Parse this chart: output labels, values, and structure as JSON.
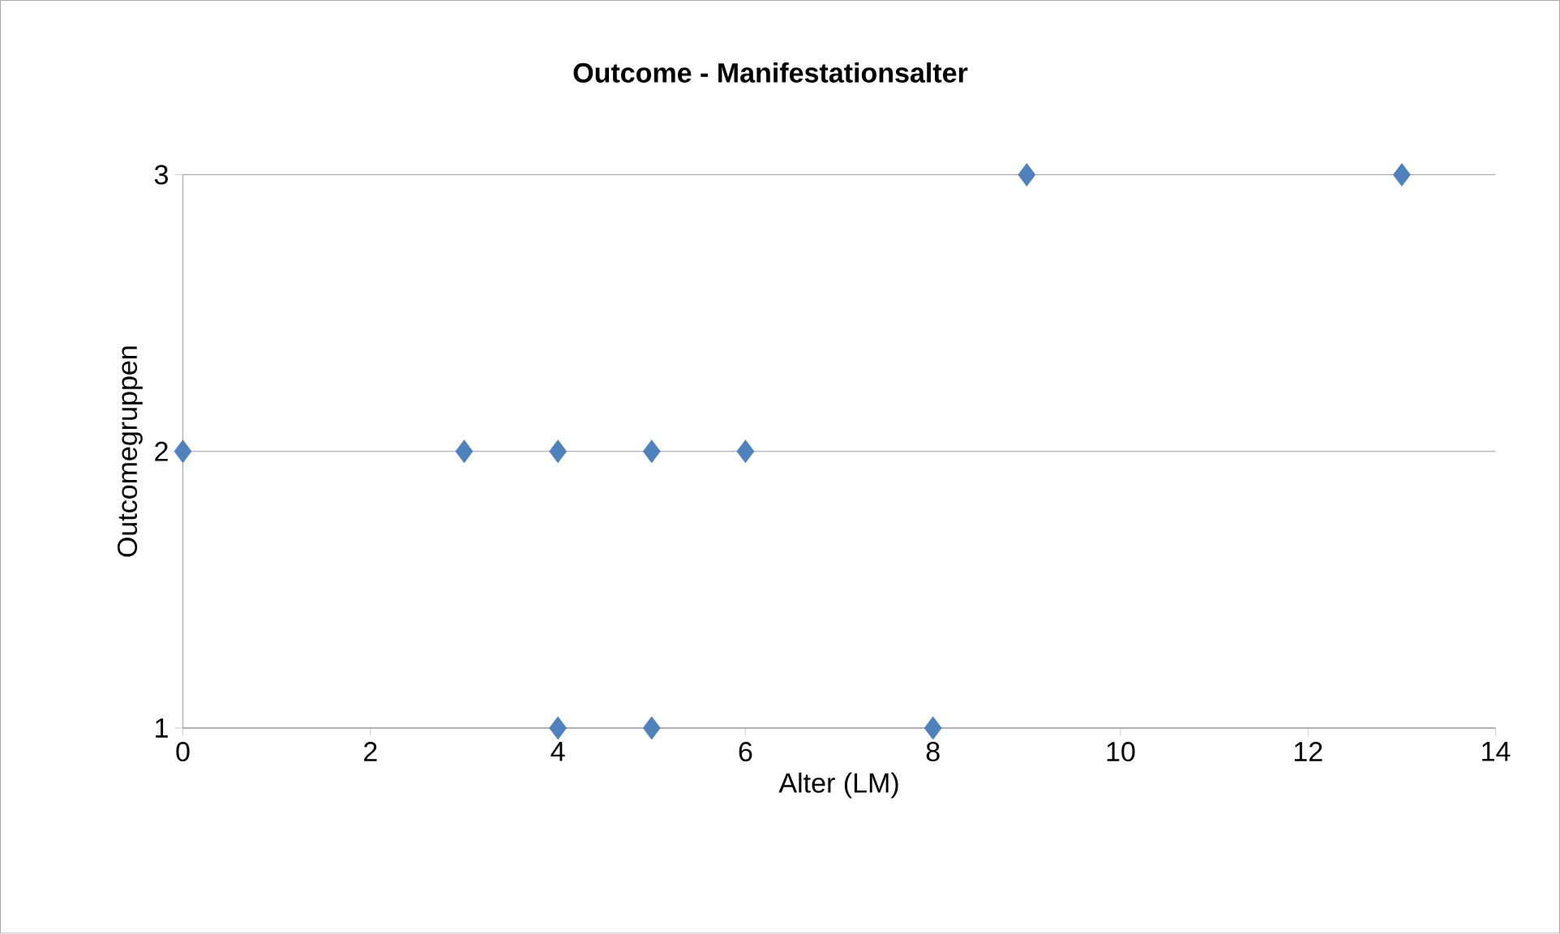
{
  "chart_data": {
    "type": "scatter",
    "title": "Outcome - Manifestationsalter",
    "xlabel": "Alter (LM)",
    "ylabel": "Outcomegruppen",
    "x": [
      0,
      3,
      4,
      5,
      6,
      9,
      13,
      4,
      5,
      8
    ],
    "values": [
      2,
      2,
      2,
      2,
      2,
      3,
      3,
      1,
      1,
      1
    ],
    "color": "#4f81bd",
    "xlim": [
      0,
      14
    ],
    "ylim": [
      1,
      3
    ],
    "xticks": [
      0,
      2,
      4,
      6,
      8,
      10,
      12,
      14
    ],
    "yticks": [
      1,
      2,
      3
    ],
    "grid": "y",
    "marker": "diamond"
  }
}
